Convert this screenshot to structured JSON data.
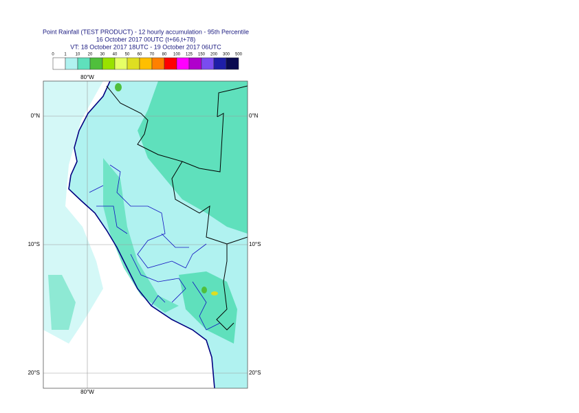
{
  "header": {
    "lines": [
      "Point Rainfall (TEST PRODUCT) - 12 hourly accumulation - 95th Percentile",
      "16 October 2017 00UTC (t+66,t+78)",
      "VT: 18 October 2017 18UTC - 19 October 2017 06UTC"
    ]
  },
  "legend": {
    "labels": [
      0,
      1,
      10,
      20,
      30,
      40,
      50,
      60,
      70,
      80,
      100,
      125,
      150,
      200,
      300,
      500
    ],
    "colors": [
      "#ffffff",
      "#b0f2f0",
      "#5fe0bc",
      "#4fbf3c",
      "#99e200",
      "#e6ff66",
      "#dede22",
      "#ffbf00",
      "#ff8000",
      "#ff0000",
      "#ff00ff",
      "#b000cc",
      "#7a4cf0",
      "#1e1ea8",
      "#0a0a50"
    ]
  },
  "map": {
    "lon_label": "80°W",
    "lat_labels": [
      "0°N",
      "10°S",
      "20°S"
    ]
  }
}
